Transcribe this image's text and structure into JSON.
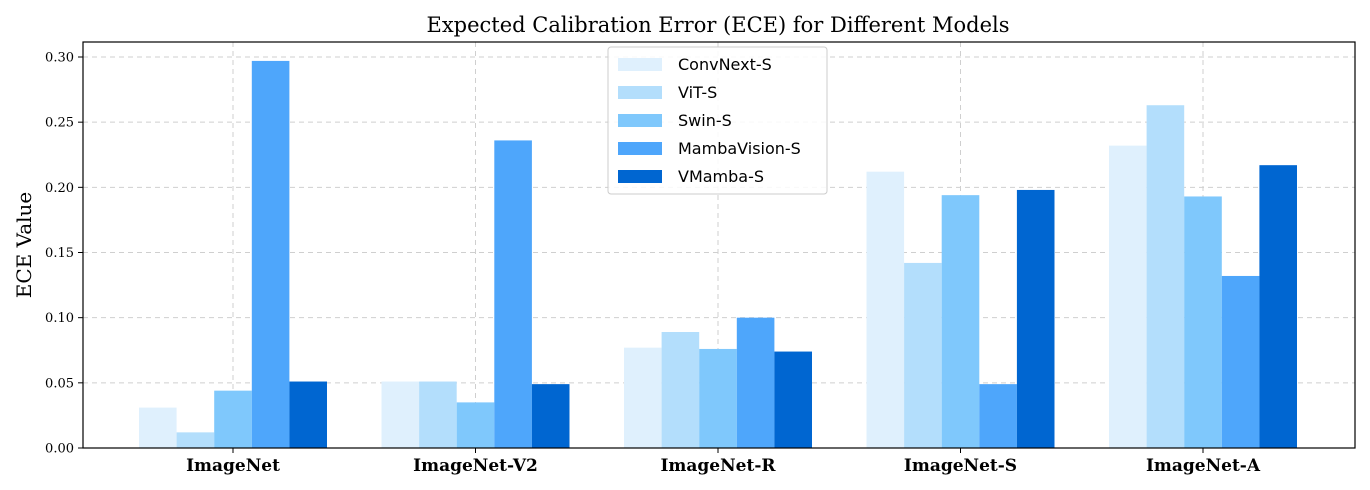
{
  "chart_data": {
    "type": "bar",
    "title": "Expected Calibration Error (ECE) for Different Models",
    "xlabel": "",
    "ylabel": "ECE Value",
    "ylim": [
      0,
      0.3
    ],
    "yticks": [
      "0.00",
      "0.05",
      "0.10",
      "0.15",
      "0.20",
      "0.25",
      "0.30"
    ],
    "grid": true,
    "legend_position": "top-center",
    "categories": [
      "ImageNet",
      "ImageNet-V2",
      "ImageNet-R",
      "ImageNet-S",
      "ImageNet-A"
    ],
    "series": [
      {
        "name": "ConvNext-S",
        "color": "#dff0fd",
        "values": [
          0.031,
          0.051,
          0.077,
          0.212,
          0.232
        ]
      },
      {
        "name": "ViT-S",
        "color": "#b3defc",
        "values": [
          0.012,
          0.051,
          0.089,
          0.142,
          0.263
        ]
      },
      {
        "name": "Swin-S",
        "color": "#7fc8fc",
        "values": [
          0.044,
          0.035,
          0.076,
          0.194,
          0.193
        ]
      },
      {
        "name": "MambaVision-S",
        "color": "#4ea6fb",
        "values": [
          0.297,
          0.236,
          0.1,
          0.049,
          0.132
        ]
      },
      {
        "name": "VMamba-S",
        "color": "#0066d1",
        "values": [
          0.051,
          0.049,
          0.074,
          0.198,
          0.217
        ]
      }
    ]
  }
}
